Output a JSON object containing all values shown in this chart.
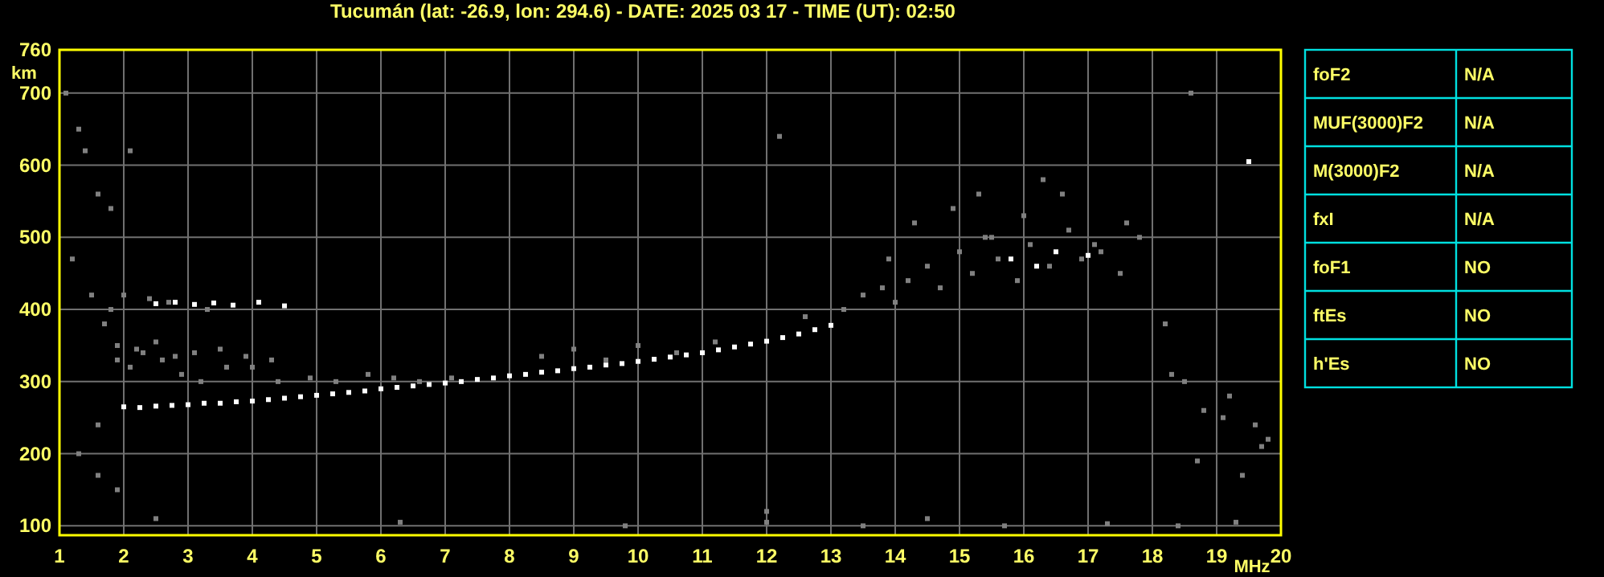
{
  "chart_data": [
    {
      "type": "scatter",
      "title": "Tucumán (lat: -26.9, lon: 294.6) - DATE: 2025 03 17 - TIME (UT): 02:50",
      "xlabel": "MHz",
      "ylabel": "km",
      "xlim": [
        1,
        20
      ],
      "xticks": [
        1,
        2,
        3,
        4,
        5,
        6,
        7,
        8,
        9,
        10,
        11,
        12,
        13,
        14,
        15,
        16,
        17,
        18,
        19,
        20
      ],
      "ylim": [
        87,
        760
      ],
      "yticks": [
        100,
        200,
        300,
        400,
        500,
        600,
        700,
        760
      ],
      "grid": true,
      "marker": "square",
      "series": [
        {
          "color": "#ffffff",
          "x": [
            2.0,
            2.25,
            2.5,
            2.75,
            3.0,
            3.25,
            3.5,
            3.75,
            4.0,
            4.25,
            4.5,
            4.75,
            5.0,
            5.25,
            5.5,
            5.75,
            6.0,
            6.25,
            6.5,
            6.75,
            7.0,
            7.25,
            7.5,
            7.75,
            8.0,
            8.25,
            8.5,
            8.75,
            9.0,
            9.25,
            9.5,
            9.75,
            10.0,
            10.25,
            10.5,
            10.75,
            11.0,
            11.25,
            11.5,
            11.75,
            12.0,
            12.25,
            12.5,
            12.75,
            13.0,
            2.5,
            2.8,
            3.1,
            3.4,
            3.7,
            4.1,
            4.5,
            15.8,
            16.2,
            16.5,
            17.0,
            19.5
          ],
          "values": [
            265,
            264,
            266,
            267,
            268,
            270,
            270,
            272,
            273,
            275,
            277,
            279,
            281,
            283,
            285,
            287,
            290,
            292,
            294,
            296,
            298,
            300,
            303,
            305,
            308,
            310,
            313,
            315,
            318,
            320,
            323,
            325,
            328,
            331,
            334,
            337,
            340,
            344,
            348,
            352,
            356,
            361,
            366,
            372,
            378,
            408,
            410,
            407,
            409,
            406,
            410,
            405,
            470,
            460,
            480,
            475,
            605
          ]
        },
        {
          "color": "#808080",
          "x": [
            1.1,
            1.3,
            1.4,
            1.6,
            1.8,
            1.2,
            1.5,
            1.7,
            1.9,
            1.3,
            1.6,
            1.9,
            2.1,
            2.3,
            2.6,
            2.9,
            3.2,
            3.6,
            4.0,
            4.4,
            4.9,
            5.3,
            5.8,
            6.2,
            6.6,
            7.1,
            1.9,
            2.2,
            2.5,
            2.8,
            3.1,
            3.5,
            3.9,
            4.3,
            1.8,
            2.0,
            2.4,
            2.7,
            3.3,
            8.5,
            9.0,
            9.5,
            10.0,
            10.6,
            11.2,
            12.6,
            13.2,
            13.5,
            13.8,
            14.0,
            14.2,
            14.5,
            14.7,
            15.0,
            15.2,
            15.4,
            15.6,
            15.9,
            16.1,
            16.4,
            16.7,
            16.9,
            17.2,
            17.5,
            17.8,
            14.3,
            14.9,
            15.5,
            16.0,
            16.6,
            17.1,
            17.6,
            13.9,
            15.3,
            16.3,
            18.2,
            18.5,
            18.8,
            19.2,
            19.6,
            19.8,
            18.3,
            18.7,
            19.1,
            19.4,
            19.7,
            2.5,
            6.3,
            9.8,
            12.0,
            12.0,
            13.5,
            14.5,
            15.7,
            17.3,
            18.4,
            19.3,
            1.6,
            2.1,
            12.2,
            18.6
          ],
          "values": [
            700,
            650,
            620,
            560,
            540,
            470,
            420,
            380,
            330,
            200,
            170,
            150,
            320,
            340,
            330,
            310,
            300,
            320,
            320,
            300,
            305,
            300,
            310,
            305,
            300,
            305,
            350,
            345,
            355,
            335,
            340,
            345,
            335,
            330,
            400,
            420,
            415,
            410,
            400,
            335,
            345,
            330,
            350,
            340,
            355,
            390,
            400,
            420,
            430,
            410,
            440,
            460,
            430,
            480,
            450,
            500,
            470,
            440,
            490,
            460,
            510,
            470,
            480,
            450,
            500,
            520,
            540,
            500,
            530,
            560,
            490,
            520,
            470,
            560,
            580,
            380,
            300,
            260,
            280,
            240,
            220,
            310,
            190,
            250,
            170,
            210,
            110,
            105,
            100,
            105,
            120,
            100,
            110,
            100,
            103,
            100,
            105,
            240,
            620,
            640,
            700
          ]
        }
      ]
    },
    {
      "type": "other",
      "categories": [
        "foF2",
        "MUF(3000)F2",
        "M(3000)F2",
        "fxI",
        "foF1",
        "ftEs",
        "h'Es"
      ],
      "value_labels": [
        "N/A",
        "N/A",
        "N/A",
        "N/A",
        "NO",
        "NO",
        "NO"
      ]
    }
  ]
}
